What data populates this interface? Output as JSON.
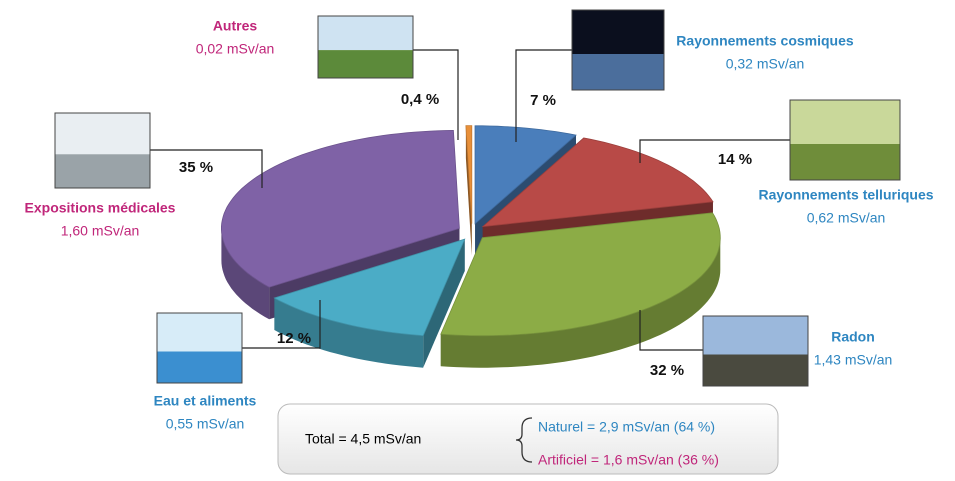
{
  "chart_data": {
    "type": "pie",
    "categories": [
      "Rayonnements cosmiques",
      "Rayonnements telluriques",
      "Radon",
      "Eau et aliments",
      "Expositions médicales",
      "Autres"
    ],
    "values": [
      7,
      14,
      32,
      12,
      35,
      0.4
    ],
    "value_labels": [
      "7 %",
      "14 %",
      "32 %",
      "12 %",
      "35 %",
      "0,4 %"
    ],
    "doses": [
      "0,32 mSv/an",
      "0,62 mSv/an",
      "1,43 mSv/an",
      "0,55 mSv/an",
      "1,60 mSv/an",
      "0,02 mSv/an"
    ],
    "colors": [
      "#4a7ebb",
      "#b84a47",
      "#8cac46",
      "#4bacc6",
      "#7f62a6",
      "#e8903a"
    ],
    "label_colors": [
      "#2e86c1",
      "#2e86c1",
      "#2e86c1",
      "#2e86c1",
      "#c0267a",
      "#c0267a"
    ],
    "summary": {
      "total": "Total = 4,5 mSv/an",
      "naturel": "Naturel   = 2,9 mSv/an (64 %)",
      "artificiel": "Artificiel = 1,6 mSv/an (36 %)",
      "naturel_color": "#2e86c1",
      "artificiel_color": "#c0267a"
    }
  }
}
